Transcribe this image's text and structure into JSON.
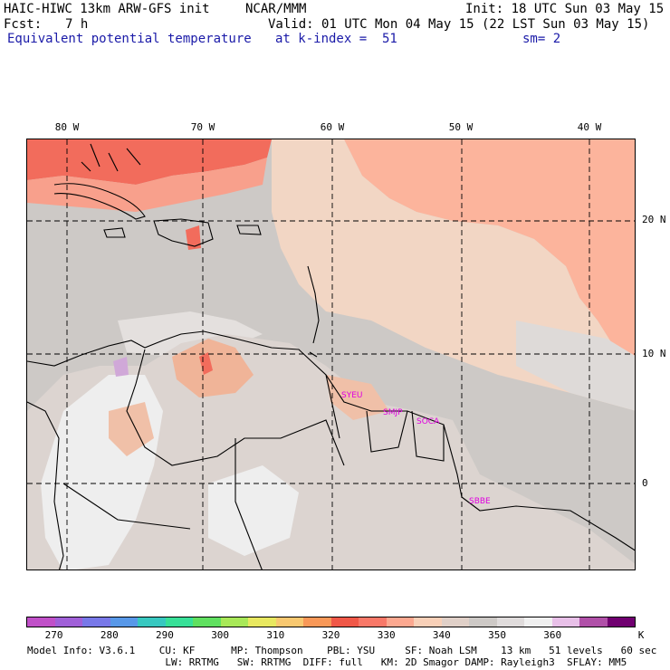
{
  "header": {
    "model": "HAIC-HIWC 13km ARW-GFS init",
    "org": "NCAR/MMM",
    "init": "Init: 18 UTC Sun 03 May 15",
    "fcst_label": "Fcst:",
    "fcst_value": "7 h",
    "valid": "Valid: 01 UTC Mon 04 May 15 (22 LST Sun 03 May 15)",
    "field": "Equivalent potential temperature",
    "level": "at k-index =  51",
    "smooth": "sm= 2"
  },
  "map": {
    "lon_labels": [
      "80 W",
      "70 W",
      "60 W",
      "50 W",
      "40 W"
    ],
    "lat_labels": [
      "20 N",
      "10 N",
      "0"
    ],
    "sites": [
      "SYEU",
      "SMJP",
      "SOCA",
      "SBBE"
    ]
  },
  "colorbar": {
    "unit": "K",
    "labels": [
      "270",
      "280",
      "290",
      "300",
      "310",
      "320",
      "330",
      "340",
      "350",
      "360"
    ],
    "colors": [
      "#c050c8",
      "#a060d8",
      "#7878e8",
      "#5898e8",
      "#38c8c0",
      "#38e098",
      "#60e060",
      "#a8e858",
      "#e8e860",
      "#f8c870",
      "#f89858",
      "#f05848",
      "#f87868",
      "#fca890",
      "#f8d0b8",
      "#e0d0c8",
      "#cdc9c6",
      "#e0dcdc",
      "#f0f0f0",
      "#e8c0e8",
      "#b050a8",
      "#700070"
    ]
  },
  "footer": {
    "line1": "Model Info: V3.6.1    CU: KF      MP: Thompson    PBL: YSU     SF: Noah LSM    13 km   51 levels   60 sec",
    "line2": "                       LW: RRTMG   SW: RRTMG  DIFF: full   KM: 2D Smagor DAMP: Rayleigh3  SFLAY: MM5"
  }
}
